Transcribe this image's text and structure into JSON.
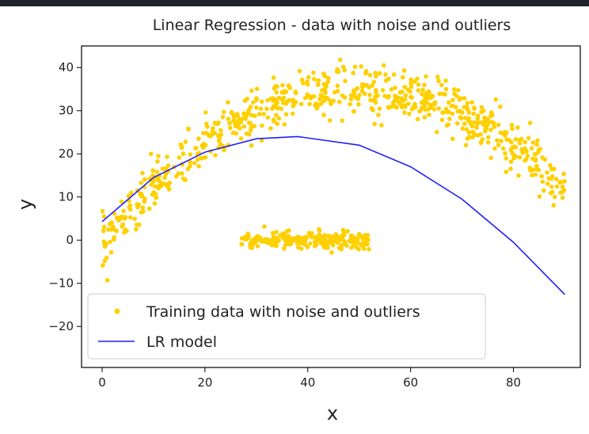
{
  "chart_data": {
    "type": "scatter",
    "title": "Linear Regression - data with noise and outliers",
    "xlabel": "x",
    "ylabel": "y",
    "xlim": [
      -4,
      93
    ],
    "ylim": [
      -29.5,
      45
    ],
    "xticks": [
      0,
      20,
      40,
      60,
      80
    ],
    "yticks": [
      -20,
      -10,
      0,
      10,
      20,
      30,
      40
    ],
    "grid": false,
    "legend_position": "lower-left",
    "series": [
      {
        "name": "Training data with noise and outliers",
        "kind": "scatter",
        "color": "#ffd000",
        "model": "y = -0.0144*x^2 + 1.44*x - 1, noise ±5 (approximate reading of points)",
        "x_range": [
          0,
          90
        ],
        "n_points": 700
      },
      {
        "name": "outliers",
        "kind": "scatter",
        "color": "#ffd000",
        "x_range": [
          27,
          52
        ],
        "y_center": 0,
        "y_spread": 3,
        "n_points": 240
      },
      {
        "name": "LR model",
        "kind": "line",
        "color": "#1f1fff",
        "x": [
          0,
          10,
          20,
          30,
          38,
          50,
          60,
          70,
          80,
          90
        ],
        "y": [
          4.3,
          14.5,
          20.4,
          23.5,
          24.0,
          22.0,
          17.0,
          9.5,
          -0.5,
          -12.6
        ]
      }
    ]
  }
}
